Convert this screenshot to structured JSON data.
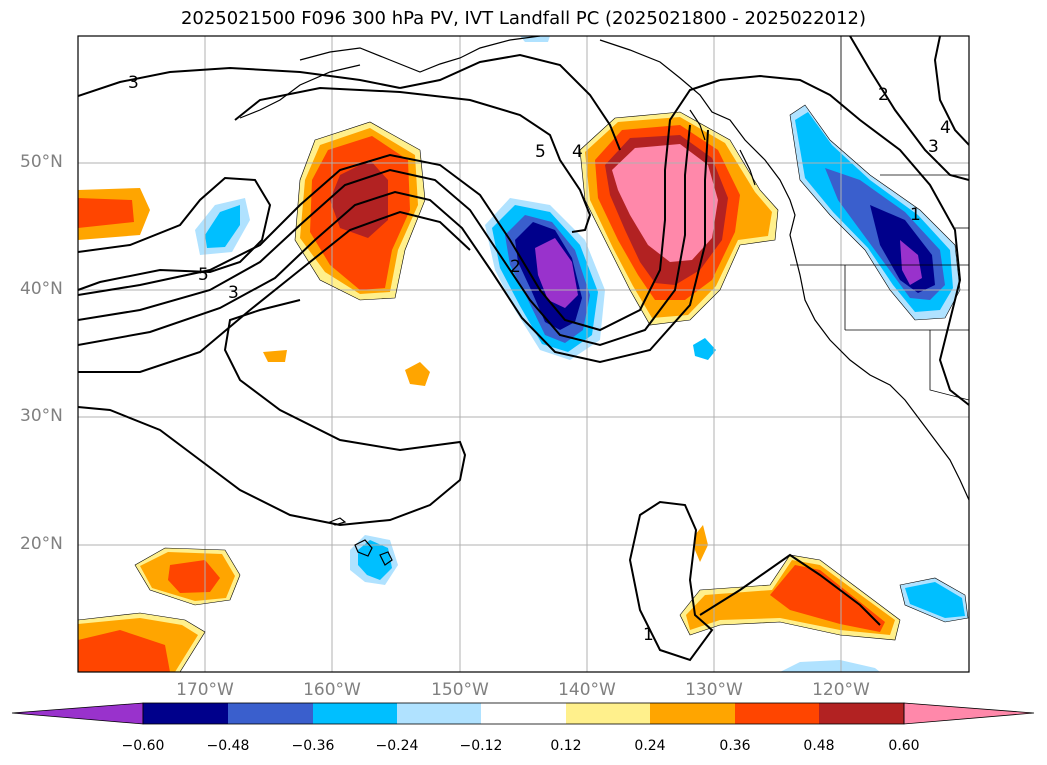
{
  "title": "2025021500 F096 300 hPa PV, IVT Landfall PC (2025021800 - 2025022012)",
  "lat_labels": [
    "50°N",
    "40°N",
    "30°N",
    "20°N"
  ],
  "lon_labels": [
    "170°W",
    "160°W",
    "150°W",
    "140°W",
    "130°W",
    "120°W"
  ],
  "colorbar": {
    "labels": [
      "−0.60",
      "−0.48",
      "−0.36",
      "−0.24",
      "−0.12",
      "0.12",
      "0.24",
      "0.36",
      "0.48",
      "0.60"
    ],
    "colors": [
      "#9932cc",
      "#00008b",
      "#3a5fcd",
      "#00bfff",
      "#b0e2ff",
      "#ffffff",
      "#fff08c",
      "#ffa500",
      "#ff4500",
      "#b22222",
      "#ff88aa"
    ]
  },
  "contour_labels": [
    "3",
    "5",
    "3",
    "5",
    "4",
    "2",
    "2",
    "4",
    "3",
    "1",
    "1"
  ]
}
